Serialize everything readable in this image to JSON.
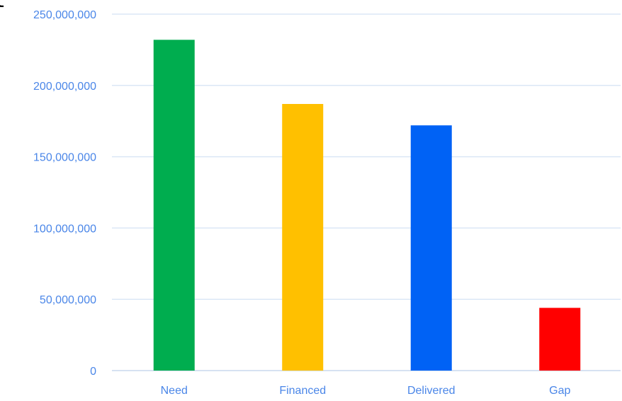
{
  "partial_text": "t",
  "colors": {
    "axis_text": "#4a86e8",
    "grid": "#dbe7f6",
    "baseline": "#c9d9ee"
  },
  "chart_data": {
    "type": "bar",
    "categories": [
      "Need",
      "Financed",
      "Delivered",
      "Gap"
    ],
    "values": [
      232000000,
      187000000,
      172000000,
      44000000
    ],
    "colors": [
      "#00ad4f",
      "#ffc000",
      "#0062f5",
      "#ff0000"
    ],
    "ylim": [
      0,
      250000000
    ],
    "y_ticks": [
      0,
      50000000,
      100000000,
      150000000,
      200000000,
      250000000
    ],
    "y_tick_labels": [
      "0",
      "50,000,000",
      "100,000,000",
      "150,000,000",
      "200,000,000",
      "250,000,000"
    ],
    "grid": true,
    "legend": "none"
  }
}
